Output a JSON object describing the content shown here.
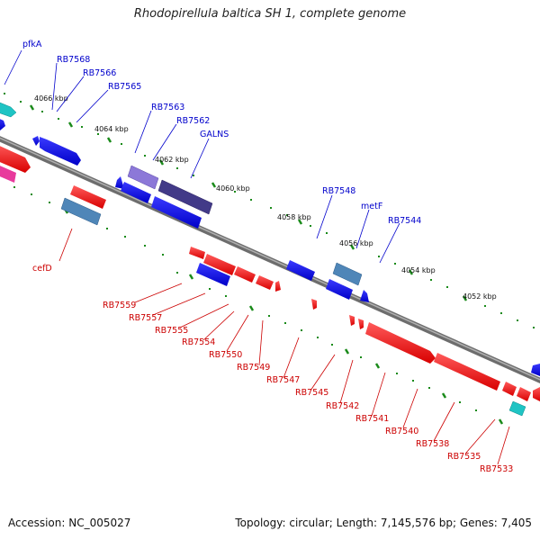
{
  "title": "Rhodopirellula baltica SH 1, complete genome",
  "accession": "Accession: NC_005027",
  "topology": "Topology: circular; Length: 7,145,576 bp; Genes: 7,405",
  "colors": {
    "forward_label": "#0000cc",
    "reverse_label": "#cc0000",
    "backbone": "#808080",
    "tick": "#1a8a1a"
  },
  "kbp_ticks": [
    "4066 kbp",
    "4064 kbp",
    "4062 kbp",
    "4060 kbp",
    "4058 kbp",
    "4056 kbp",
    "4054 kbp",
    "4052 kbp"
  ],
  "forward_genes": [
    "pfkA",
    "RB7568",
    "RB7566",
    "RB7565",
    "RB7563",
    "RB7562",
    "GALNS",
    "RB7548",
    "metF",
    "RB7544"
  ],
  "reverse_genes": [
    "cefD",
    "RB7559",
    "RB7557",
    "RB7555",
    "RB7554",
    "RB7550",
    "RB7549",
    "RB7547",
    "RB7545",
    "RB7542",
    "RB7541",
    "RB7540",
    "RB7538",
    "RB7535",
    "RB7533"
  ]
}
